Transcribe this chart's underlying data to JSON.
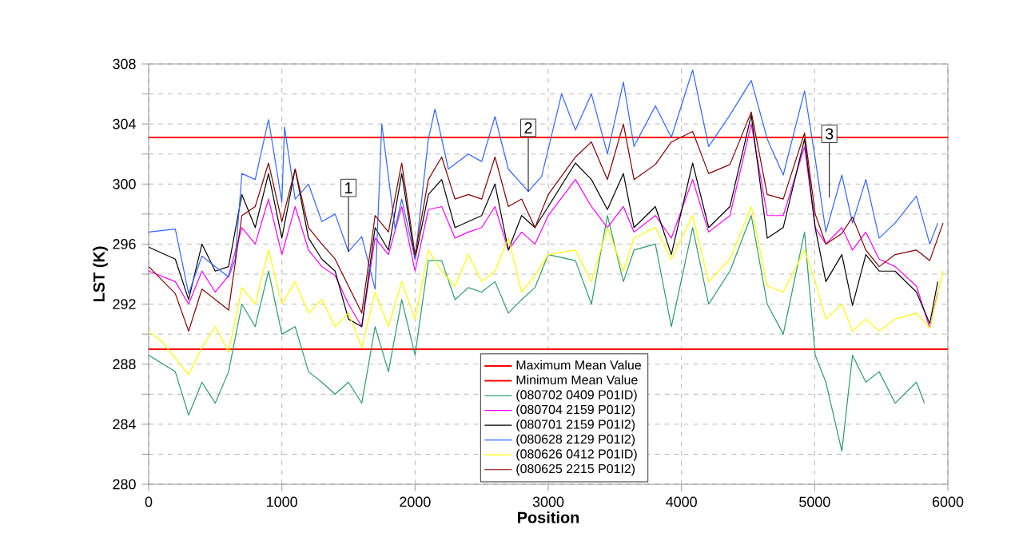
{
  "chart_data": {
    "type": "line",
    "xlabel": "Position",
    "ylabel": "LST (K)",
    "xlim": [
      0,
      6000
    ],
    "xticks": [
      0,
      1000,
      2000,
      3000,
      4000,
      5000,
      6000
    ],
    "ylim": [
      280,
      308
    ],
    "yticks": [
      280,
      {
        "value": 282,
        "label": null
      },
      284,
      {
        "value": 286,
        "label": null
      },
      288,
      {
        "value": 290,
        "label": null
      },
      292,
      {
        "value": 294,
        "label": null
      },
      296,
      {
        "value": 298,
        "label": null
      },
      300,
      {
        "value": 302,
        "label": null
      },
      304,
      {
        "value": 306,
        "label": null
      },
      308
    ],
    "grid": true,
    "legend": "bottom",
    "ref_lines": [
      {
        "axis": "y",
        "value": 303.1,
        "label": "Maximum Mean Value",
        "color": "#ff0000"
      },
      {
        "axis": "y",
        "value": 289.0,
        "label": "Minimum Mean Value",
        "color": "#ff0000"
      }
    ],
    "annotations": [
      {
        "text": "1",
        "x": 1500,
        "y": 295.5
      },
      {
        "text": "2",
        "x": 2850,
        "y": 299.5
      },
      {
        "text": "3",
        "x": 5110,
        "y": 299.1
      }
    ],
    "series": [
      {
        "name": "(080702 0409 P01ID)",
        "color": "#2e9a6a",
        "x": [
          0,
          200,
          300,
          400,
          500,
          600,
          700,
          800,
          900,
          1000,
          1100,
          1200,
          1300,
          1400,
          1500,
          1600,
          1700,
          1800,
          1900,
          2000,
          2100,
          2200,
          2300,
          2400,
          2500,
          2600,
          2700,
          2800,
          2900,
          3000,
          3204,
          3324,
          3444,
          3564,
          3644,
          3804,
          3924,
          4084,
          4204,
          4364,
          4524,
          4644,
          4764,
          4924,
          5004,
          5084,
          5204,
          5284,
          5384,
          5484,
          5604,
          5764,
          5824
        ],
        "values": [
          288.6,
          287.5,
          284.6,
          286.8,
          285.4,
          287.5,
          292,
          290.5,
          294.2,
          290,
          290.5,
          287.5,
          286.8,
          286,
          286.8,
          285.4,
          290.5,
          287.5,
          292.3,
          288.6,
          294.9,
          294.9,
          292.3,
          293.1,
          292.8,
          293.5,
          291.4,
          292.3,
          293.1,
          295.3,
          294.9,
          292,
          297.9,
          293.5,
          295.6,
          296,
          290.5,
          297.1,
          292,
          294.2,
          297.9,
          292,
          290,
          296.8,
          288.6,
          286.8,
          282.2,
          288.6,
          286.8,
          287.5,
          285.4,
          286.8,
          285.4
        ]
      },
      {
        "name": "(080704 2159 P01I2)",
        "color": "#ff00ff",
        "x": [
          0,
          200,
          300,
          400,
          500,
          600,
          700,
          800,
          900,
          1000,
          1100,
          1200,
          1300,
          1400,
          1500,
          1600,
          1700,
          1800,
          1900,
          2000,
          2100,
          2200,
          2300,
          2400,
          2500,
          2600,
          2700,
          2800,
          2900,
          3000,
          3204,
          3324,
          3444,
          3564,
          3644,
          3804,
          3924,
          4084,
          4204,
          4364,
          4524,
          4644,
          4764,
          4924,
          5004,
          5084,
          5204,
          5284,
          5384,
          5484,
          5604,
          5764,
          5864,
          5924
        ],
        "values": [
          294.2,
          293.5,
          292,
          294.2,
          292.8,
          293.9,
          297.1,
          296,
          299,
          295.3,
          298.5,
          295.6,
          294.5,
          293.9,
          292,
          290.5,
          296.4,
          295.3,
          298.5,
          294.2,
          298.3,
          298.5,
          296.4,
          296.8,
          297.1,
          298.5,
          295.6,
          296.8,
          296,
          297.9,
          300.3,
          298.5,
          297.1,
          298.5,
          296.8,
          297.9,
          296.4,
          300.3,
          296.8,
          297.9,
          304,
          297.9,
          297.9,
          302.5,
          297.1,
          296,
          297.1,
          295.6,
          296.8,
          295,
          294.5,
          293.2,
          290.4,
          292.8
        ]
      },
      {
        "name": "(080701 2159 P01I2)",
        "color": "#000000",
        "x": [
          0,
          200,
          300,
          400,
          500,
          600,
          700,
          800,
          900,
          1000,
          1100,
          1200,
          1300,
          1400,
          1500,
          1600,
          1700,
          1800,
          1900,
          2000,
          2100,
          2200,
          2300,
          2400,
          2500,
          2600,
          2700,
          2800,
          2900,
          3000,
          3204,
          3324,
          3444,
          3564,
          3644,
          3804,
          3924,
          4084,
          4204,
          4364,
          4524,
          4644,
          4764,
          4924,
          5004,
          5084,
          5204,
          5284,
          5384,
          5484,
          5604,
          5764,
          5864,
          5924
        ],
        "values": [
          295.8,
          295,
          292.3,
          296,
          294.2,
          294.5,
          299.3,
          297.1,
          300.7,
          296.4,
          301,
          296.4,
          295,
          294.2,
          291,
          290.5,
          297.1,
          295.6,
          300.7,
          295,
          299.3,
          300.3,
          297.1,
          297.5,
          297.9,
          300,
          295.6,
          297.9,
          297.1,
          298.5,
          301.4,
          300.3,
          298.3,
          300.7,
          297.1,
          298.5,
          295.3,
          301.4,
          297.1,
          298.5,
          304.6,
          296.4,
          297.1,
          303,
          297.1,
          293.5,
          295.3,
          291.9,
          295.3,
          294.2,
          294.2,
          292.8,
          290.7,
          293.5
        ]
      },
      {
        "name": "(080628 2129 P01I2)",
        "color": "#3366ff",
        "x": [
          0,
          200,
          300,
          400,
          500,
          600,
          650,
          700,
          800,
          900,
          1000,
          1020,
          1100,
          1200,
          1300,
          1400,
          1500,
          1600,
          1700,
          1750,
          1850,
          1900,
          2000,
          2100,
          2150,
          2250,
          2400,
          2500,
          2600,
          2700,
          2850,
          2950,
          3100,
          3204,
          3324,
          3444,
          3564,
          3644,
          3804,
          3924,
          4084,
          4204,
          4364,
          4524,
          4644,
          4764,
          4924,
          5004,
          5084,
          5204,
          5284,
          5384,
          5484,
          5604,
          5764,
          5864,
          5924
        ],
        "values": [
          296.8,
          297,
          292.7,
          295.2,
          294.5,
          293.8,
          295,
          300.7,
          300.3,
          304.3,
          298.8,
          303.8,
          299,
          300,
          297.5,
          298,
          295.5,
          296.5,
          293,
          304,
          297,
          299,
          295,
          303,
          305,
          301,
          302,
          301.5,
          304.5,
          301,
          299.5,
          300.5,
          306,
          303.6,
          306,
          302,
          306.8,
          302.5,
          305.2,
          303.1,
          307.6,
          302.5,
          304.6,
          306.9,
          303,
          300.6,
          306.2,
          301.7,
          296.8,
          300.6,
          297.4,
          300.3,
          296.4,
          297.4,
          299.2,
          296,
          297.4
        ]
      },
      {
        "name": "(080626 0412 P01ID)",
        "color": "#ffff00",
        "x": [
          0,
          100,
          200,
          300,
          400,
          500,
          600,
          700,
          800,
          900,
          1000,
          1100,
          1200,
          1300,
          1400,
          1500,
          1600,
          1700,
          1800,
          1900,
          2000,
          2100,
          2200,
          2300,
          2400,
          2500,
          2600,
          2700,
          2800,
          2900,
          3000,
          3204,
          3324,
          3444,
          3564,
          3644,
          3804,
          3924,
          4084,
          4204,
          4364,
          4524,
          4644,
          4764,
          4924,
          5004,
          5084,
          5204,
          5284,
          5384,
          5484,
          5604,
          5764,
          5864,
          5964
        ],
        "values": [
          290.2,
          289.5,
          288.4,
          287.3,
          289.1,
          290.5,
          288.8,
          293.1,
          292,
          295.6,
          292,
          293.5,
          291.4,
          292.3,
          290.5,
          291.4,
          289.1,
          292.8,
          290.5,
          293.5,
          291,
          295.6,
          294.2,
          293.2,
          295.3,
          293.5,
          294.2,
          296.4,
          292.8,
          293.9,
          295.3,
          295.6,
          293.5,
          297.1,
          294.2,
          296.4,
          297.1,
          295,
          297.9,
          293.5,
          295,
          298.5,
          293.2,
          292.8,
          295.6,
          293.5,
          291,
          292,
          290.2,
          291,
          290.2,
          291,
          291.4,
          290.4,
          294.2
        ]
      },
      {
        "name": "(080625 2215 P01I2)",
        "color": "#800000",
        "x": [
          0,
          200,
          300,
          400,
          500,
          600,
          700,
          800,
          900,
          1000,
          1100,
          1200,
          1300,
          1400,
          1500,
          1600,
          1700,
          1800,
          1900,
          2000,
          2100,
          2200,
          2300,
          2400,
          2500,
          2600,
          2700,
          2800,
          2900,
          3000,
          3204,
          3324,
          3444,
          3564,
          3644,
          3804,
          3924,
          4084,
          4204,
          4364,
          4524,
          4644,
          4764,
          4924,
          5004,
          5084,
          5204,
          5284,
          5384,
          5484,
          5604,
          5764,
          5864,
          5964
        ],
        "values": [
          294.5,
          292.7,
          290.2,
          293,
          292.3,
          291.6,
          297.9,
          298.5,
          301.4,
          297.5,
          301,
          297.1,
          296,
          295,
          293.2,
          291.4,
          297.9,
          296.8,
          301.4,
          295.3,
          300.3,
          301.8,
          299,
          299.3,
          299,
          301.8,
          298.5,
          299,
          297.1,
          299.3,
          301.8,
          302.8,
          300.3,
          304,
          300.3,
          301.3,
          302.8,
          303.5,
          300.7,
          301.3,
          304.8,
          299.3,
          299,
          303.4,
          298,
          296,
          296.7,
          297.8,
          295.6,
          294.5,
          295.3,
          295.6,
          294.9,
          297.4
        ]
      }
    ]
  }
}
